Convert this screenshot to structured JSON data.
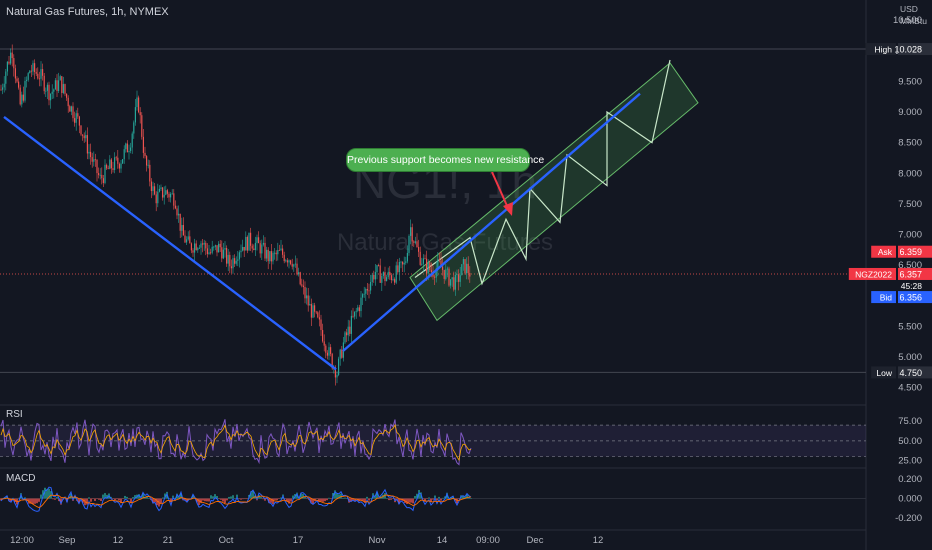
{
  "header": {
    "title": "Natural Gas Futures, 1h, NYMEX"
  },
  "watermark": {
    "symbol": "NG1!, 1h",
    "name": "Natural Gas Futures"
  },
  "annotation": {
    "text": "Previous support becomes new resistance",
    "color": "#4caf50"
  },
  "panes": {
    "rsi_label": "RSI",
    "macd_label": "MACD"
  },
  "colors": {
    "background": "#131722",
    "up": "#26a69a",
    "down": "#ef5350",
    "trendline": "#2962ff",
    "channel_fill": "#4caf50",
    "rsi_line": "#7e57c2",
    "rsi_signal": "#f7a600",
    "macd_line": "#2962ff",
    "macd_signal": "#ff6d00"
  },
  "chart_data": {
    "type": "candlestick",
    "price_axis": {
      "unit_top": "USD",
      "unit_bottom": "MMBtu",
      "range": [
        4.3,
        10.6
      ],
      "ticks": [
        "10.500",
        "10.000",
        "9.500",
        "9.000",
        "8.500",
        "8.000",
        "7.500",
        "7.000",
        "6.500",
        "6.000",
        "5.500",
        "5.000",
        "4.500"
      ]
    },
    "time_axis": {
      "labels": [
        "12:00",
        "Sep",
        "12",
        "21",
        "Oct",
        "17",
        "Nov",
        "14",
        "09:00",
        "Dec",
        "12"
      ]
    },
    "markers": {
      "high": {
        "label": "High",
        "value": "10.028"
      },
      "low": {
        "label": "Low",
        "value": "4.750"
      },
      "ask": {
        "label": "Ask",
        "value": "6.359"
      },
      "last": {
        "label": "NGZ2022",
        "value": "6.357",
        "countdown": "45:28"
      },
      "bid": {
        "label": "Bid",
        "value": "6.356"
      }
    },
    "price_path": [
      [
        0,
        9.3
      ],
      [
        6,
        9.7
      ],
      [
        12,
        10.03
      ],
      [
        20,
        9.1
      ],
      [
        30,
        9.7
      ],
      [
        40,
        9.6
      ],
      [
        50,
        9.3
      ],
      [
        60,
        9.5
      ],
      [
        70,
        9.1
      ],
      [
        80,
        8.8
      ],
      [
        90,
        8.3
      ],
      [
        100,
        7.9
      ],
      [
        110,
        8.1
      ],
      [
        120,
        8.2
      ],
      [
        130,
        8.5
      ],
      [
        138,
        9.2
      ],
      [
        145,
        8.2
      ],
      [
        155,
        7.6
      ],
      [
        165,
        7.7
      ],
      [
        175,
        7.6
      ],
      [
        182,
        7.0
      ],
      [
        190,
        6.8
      ],
      [
        200,
        6.9
      ],
      [
        210,
        6.7
      ],
      [
        220,
        6.8
      ],
      [
        230,
        6.5
      ],
      [
        240,
        6.8
      ],
      [
        250,
        6.9
      ],
      [
        260,
        6.8
      ],
      [
        270,
        6.6
      ],
      [
        280,
        6.7
      ],
      [
        292,
        6.6
      ],
      [
        300,
        6.2
      ],
      [
        310,
        5.8
      ],
      [
        320,
        5.5
      ],
      [
        330,
        5.0
      ],
      [
        337,
        4.75
      ],
      [
        343,
        5.2
      ],
      [
        350,
        5.5
      ],
      [
        358,
        5.8
      ],
      [
        366,
        6.1
      ],
      [
        375,
        6.4
      ],
      [
        385,
        6.3
      ],
      [
        395,
        6.35
      ],
      [
        405,
        6.5
      ],
      [
        410,
        7.15
      ],
      [
        418,
        6.7
      ],
      [
        425,
        6.5
      ],
      [
        432,
        6.4
      ],
      [
        440,
        6.5
      ],
      [
        448,
        6.3
      ],
      [
        456,
        6.2
      ],
      [
        464,
        6.5
      ],
      [
        471,
        6.357
      ]
    ],
    "trendlines": [
      {
        "from": [
          "12:00",
          8.92
        ],
        "to": [
          "Oct 20",
          4.8
        ]
      },
      {
        "from": [
          "Oct 22",
          5.1
        ],
        "to": [
          "Dec",
          9.3
        ]
      }
    ],
    "channel_projection": {
      "corners": [
        [
          410,
          6.3
        ],
        [
          670,
          9.8
        ],
        [
          698,
          9.15
        ],
        [
          437,
          5.6
        ]
      ],
      "zigzag": [
        [
          415,
          6.3
        ],
        [
          470,
          6.95
        ],
        [
          482,
          6.2
        ],
        [
          506,
          7.25
        ],
        [
          526,
          6.6
        ],
        [
          530,
          7.75
        ],
        [
          560,
          7.2
        ],
        [
          567,
          8.3
        ],
        [
          607,
          7.8
        ],
        [
          607,
          9.0
        ],
        [
          652,
          8.5
        ],
        [
          670,
          9.85
        ]
      ]
    },
    "rsi": {
      "levels": [
        75,
        50,
        25
      ],
      "band": [
        70,
        30
      ],
      "range": [
        18,
        88
      ]
    },
    "macd": {
      "ticks": [
        0.2,
        0.0,
        -0.2
      ],
      "range": [
        -0.3,
        0.28
      ]
    }
  }
}
